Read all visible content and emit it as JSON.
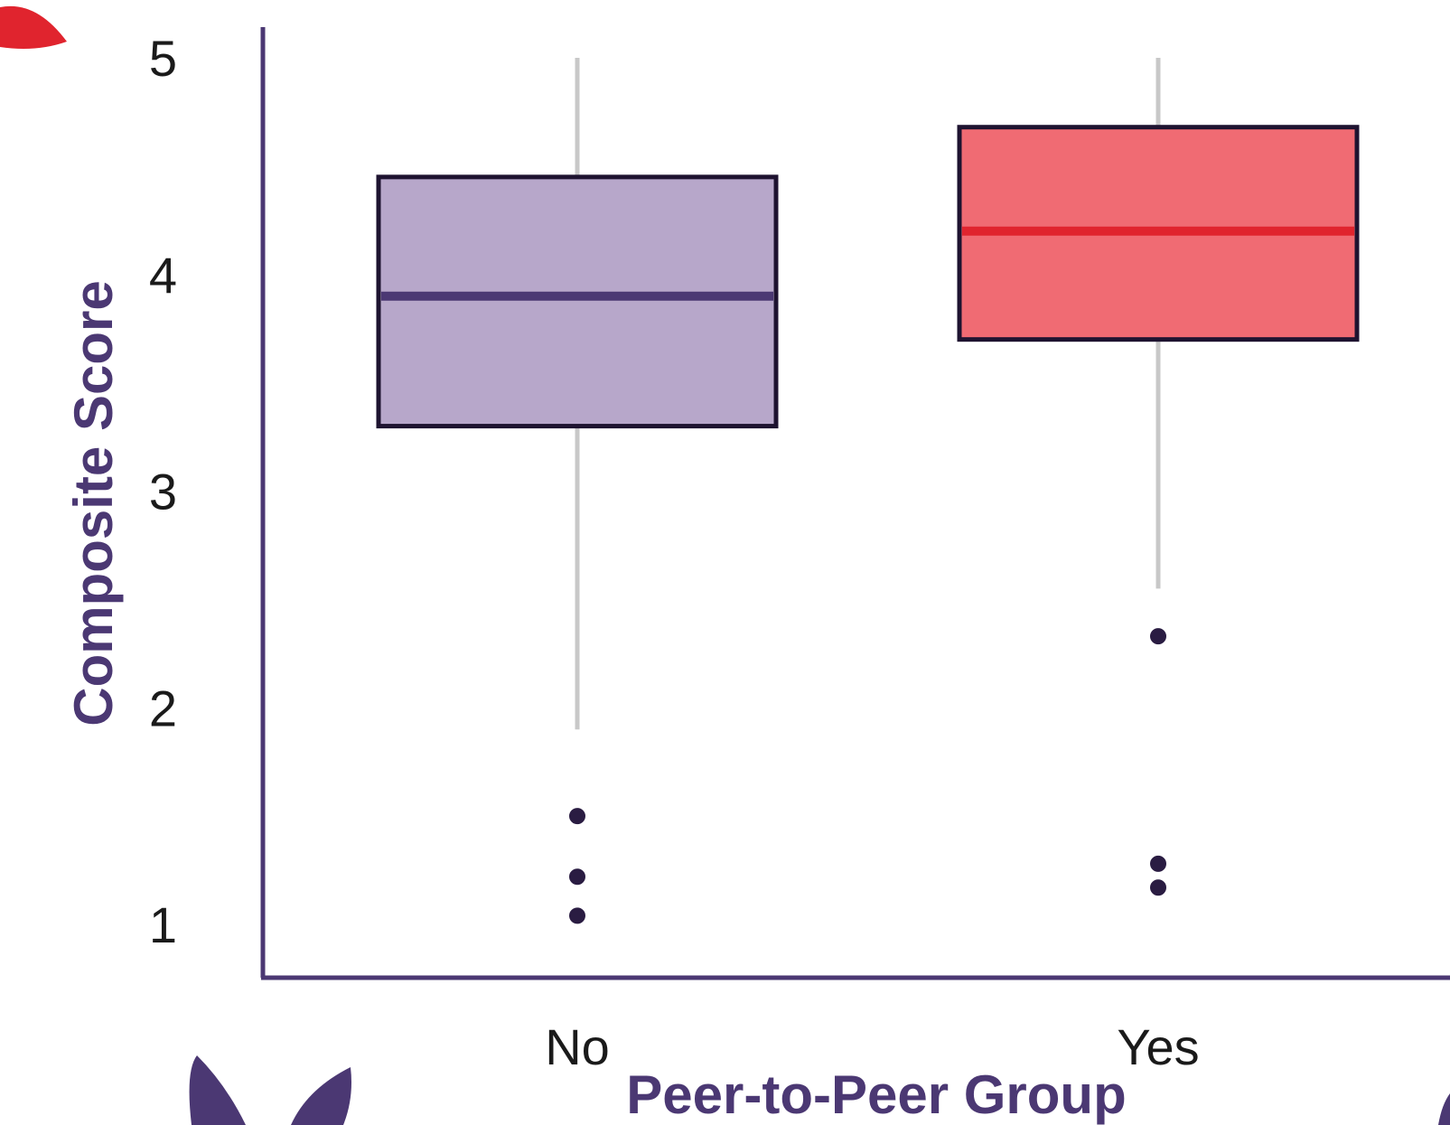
{
  "chart_data": {
    "type": "boxplot",
    "xlabel": "Peer-to-Peer Group",
    "ylabel": "Composite Score",
    "ylim": [
      0.75,
      5.15
    ],
    "yticks": [
      1,
      2,
      3,
      4,
      5
    ],
    "grid": false,
    "categories": [
      "No",
      "Yes"
    ],
    "boxes": [
      {
        "category": "No",
        "whisker_low": 1.9,
        "q1": 3.3,
        "median": 3.9,
        "q3": 4.45,
        "whisker_high": 5.0,
        "outliers": [
          1.5,
          1.22,
          1.04
        ]
      },
      {
        "category": "Yes",
        "whisker_low": 2.55,
        "q1": 3.7,
        "median": 4.2,
        "q3": 4.68,
        "whisker_high": 5.0,
        "outliers": [
          2.33,
          1.28,
          1.17
        ]
      }
    ]
  },
  "colors": {
    "axis": "#4b3873",
    "title": "#4b3873",
    "whisker": "#c8c8c8",
    "box_outline": "#1e1330",
    "outlier": "#2a1c42",
    "box_fill": [
      "#b7a7ca",
      "#f06b73"
    ],
    "median": [
      "#4b3873",
      "#e0242e"
    ],
    "deco_red": "#e0242e",
    "deco_purple": "#4b3873"
  }
}
